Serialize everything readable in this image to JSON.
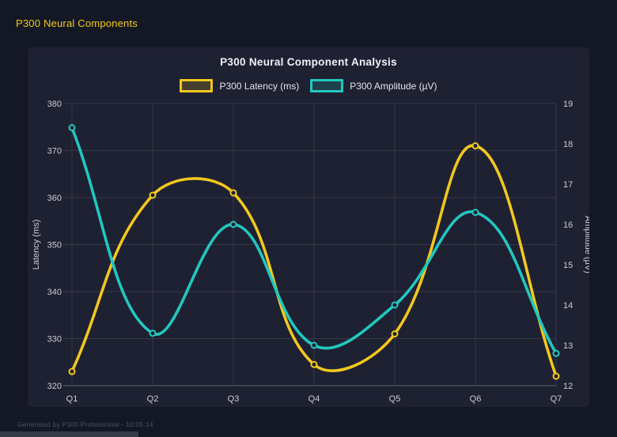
{
  "page": {
    "header": "P300 Neural Components",
    "footer": "Generated by P300 Professional - 10:05:14"
  },
  "colors": {
    "background": "#141824",
    "panel": "#1e2132",
    "header_text": "#f2c71e",
    "title_text": "#f0f1f5",
    "legend_text": "#e2e5ec",
    "axis_text": "#c9ccd6",
    "grid": "rgba(255,255,255,0.10)",
    "axis_line": "rgba(255,255,255,0.28)",
    "footer_text": "#4c5164",
    "bottom_strip": "#363b47",
    "latency": "#f2c71e",
    "amplitude": "#22c7bf"
  },
  "chart_data": {
    "type": "line",
    "title": "P300 Neural Component Analysis",
    "categories": [
      "Q1",
      "Q2",
      "Q3",
      "Q4",
      "Q5",
      "Q6",
      "Q7"
    ],
    "series": [
      {
        "name": "P300 Latency (ms)",
        "axis": "left",
        "color": "#f2c71e",
        "values": [
          323,
          360.5,
          361,
          324.5,
          331,
          371,
          322
        ]
      },
      {
        "name": "P300 Amplitude (µV)",
        "axis": "right",
        "color": "#22c7bf",
        "values": [
          18.4,
          13.3,
          16.0,
          13.0,
          14.0,
          16.3,
          12.8
        ]
      }
    ],
    "left_axis": {
      "label": "Latency (ms)",
      "min": 320,
      "max": 380,
      "ticks": [
        320,
        330,
        340,
        350,
        360,
        370,
        380
      ]
    },
    "right_axis": {
      "label": "Amplitude (µV)",
      "min": 12,
      "max": 19,
      "ticks": [
        12,
        13,
        14,
        15,
        16,
        17,
        18,
        19
      ]
    },
    "grid": true,
    "legend_position": "top",
    "line_tension": 0.4
  }
}
